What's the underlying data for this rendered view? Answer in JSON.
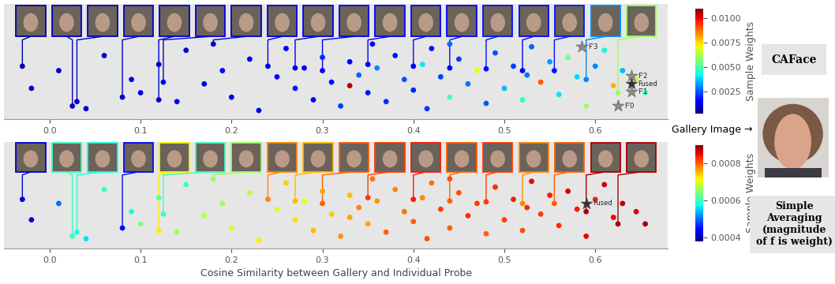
{
  "chart_data": [
    {
      "type": "scatter",
      "xlim": [
        -0.05,
        0.68
      ],
      "xticks": [
        0.0,
        0.1,
        0.2,
        0.3,
        0.4,
        0.5,
        0.6
      ],
      "ylim": [
        0,
        1.3
      ],
      "tick_labels": "x",
      "points": {
        "x": [
          -0.02,
          0.01,
          0.04,
          0.06,
          0.09,
          0.1,
          0.12,
          0.14,
          0.15,
          0.17,
          0.19,
          0.2,
          0.22,
          0.23,
          0.25,
          0.26,
          0.27,
          0.28,
          0.29,
          0.3,
          0.31,
          0.32,
          0.33,
          0.34,
          0.35,
          0.355,
          0.36,
          0.37,
          0.38,
          0.39,
          0.4,
          0.41,
          0.415,
          0.42,
          0.43,
          0.44,
          0.45,
          0.46,
          0.47,
          0.48,
          0.49,
          0.5,
          0.51,
          0.52,
          0.525,
          0.53,
          0.54,
          0.55,
          0.56,
          0.57,
          0.58,
          0.59,
          0.6,
          0.61,
          0.62,
          0.63,
          0.645,
          0.655,
          0.33,
          0.44
        ],
        "y": [
          0.35,
          0.55,
          0.12,
          0.72,
          0.45,
          0.3,
          0.62,
          0.2,
          0.78,
          0.4,
          0.55,
          0.25,
          0.68,
          0.1,
          0.48,
          0.8,
          0.35,
          0.58,
          0.22,
          0.7,
          0.42,
          0.15,
          0.65,
          0.5,
          0.3,
          0.85,
          0.58,
          0.2,
          0.72,
          0.45,
          0.33,
          0.62,
          0.12,
          0.8,
          0.48,
          0.25,
          0.68,
          0.4,
          0.55,
          0.18,
          0.75,
          0.35,
          0.6,
          0.22,
          0.5,
          0.82,
          0.42,
          0.65,
          0.28,
          0.7,
          0.48,
          0.15,
          0.6,
          0.78,
          0.38,
          0.55,
          0.45,
          0.3,
          0.38,
          0.85
        ],
        "weights": [
          0.0008,
          0.0009,
          0.001,
          0.0008,
          0.0012,
          0.0011,
          0.001,
          0.0013,
          0.0009,
          0.0012,
          0.0014,
          0.0011,
          0.0015,
          0.0012,
          0.0016,
          0.0013,
          0.0018,
          0.0015,
          0.0014,
          0.002,
          0.0017,
          0.0022,
          0.0015,
          0.0026,
          0.0018,
          0.0016,
          0.003,
          0.002,
          0.0017,
          0.0024,
          0.0019,
          0.004,
          0.0021,
          0.0018,
          0.0023,
          0.005,
          0.0022,
          0.0028,
          0.007,
          0.0025,
          0.0024,
          0.0035,
          0.0022,
          0.0045,
          0.0028,
          0.0026,
          0.009,
          0.0032,
          0.004,
          0.0055,
          0.0038,
          0.006,
          0.003,
          0.0042,
          0.008,
          0.0035,
          0.0065,
          0.0048,
          0.0105,
          0.0027
        ]
      },
      "probe_images": {
        "x": [
          -0.03,
          0.025,
          0.03,
          0.08,
          0.12,
          0.125,
          0.18,
          0.24,
          0.27,
          0.3,
          0.35,
          0.4,
          0.44,
          0.48,
          0.52,
          0.555,
          0.59,
          0.625
        ],
        "y": [
          0.6,
          0.15,
          0.2,
          0.25,
          0.22,
          0.42,
          0.85,
          0.6,
          0.58,
          0.55,
          0.62,
          0.6,
          0.58,
          0.57,
          0.55,
          0.55,
          0.45,
          0.3
        ],
        "weights": [
          0.0006,
          0.0008,
          0.0009,
          0.001,
          0.0009,
          0.0012,
          0.001,
          0.0011,
          0.0012,
          0.0013,
          0.0014,
          0.0015,
          0.0016,
          0.0017,
          0.0016,
          0.0018,
          0.003,
          0.006
        ]
      },
      "stars": [
        {
          "text": "F'3",
          "x": 0.585,
          "y": 0.82,
          "color": "#8c8c8c"
        },
        {
          "text": "F'2",
          "x": 0.64,
          "y": 0.49,
          "color": "#8c8c8c"
        },
        {
          "text": "Fused",
          "x": 0.64,
          "y": 0.4,
          "color": "#333333"
        },
        {
          "text": "F'1",
          "x": 0.64,
          "y": 0.31,
          "color": "#8c8c8c"
        },
        {
          "text": "F'0",
          "x": 0.625,
          "y": 0.15,
          "color": "#8c8c8c"
        }
      ],
      "colorbar": {
        "label": "Sample Weights",
        "range": [
          0.0002,
          0.011
        ],
        "ticks": [
          0.0025,
          {
            "value": 0.005,
            "label": "0.0050"
          },
          0.0075,
          {
            "value": 0.01,
            "label": "0.0100"
          }
        ]
      }
    },
    {
      "type": "scatter",
      "xlim": [
        -0.05,
        0.68
      ],
      "xticks": [
        0.0,
        0.1,
        0.2,
        0.3,
        0.4,
        0.5,
        0.6
      ],
      "ylim": [
        0,
        1.3
      ],
      "tick_labels": "x",
      "xlabel": "Cosine Similarity between Gallery and Individual Probe",
      "points": {
        "x": [
          -0.02,
          0.01,
          0.04,
          0.06,
          0.09,
          0.1,
          0.12,
          0.14,
          0.15,
          0.17,
          0.19,
          0.2,
          0.22,
          0.23,
          0.25,
          0.26,
          0.27,
          0.28,
          0.29,
          0.3,
          0.31,
          0.32,
          0.33,
          0.34,
          0.35,
          0.355,
          0.36,
          0.37,
          0.38,
          0.39,
          0.4,
          0.41,
          0.415,
          0.42,
          0.43,
          0.44,
          0.45,
          0.46,
          0.47,
          0.48,
          0.49,
          0.5,
          0.51,
          0.52,
          0.525,
          0.53,
          0.54,
          0.55,
          0.56,
          0.57,
          0.58,
          0.59,
          0.6,
          0.61,
          0.62,
          0.63,
          0.645,
          0.655,
          0.33,
          0.44
        ],
        "y": [
          0.35,
          0.55,
          0.12,
          0.72,
          0.45,
          0.3,
          0.62,
          0.2,
          0.78,
          0.4,
          0.55,
          0.25,
          0.68,
          0.1,
          0.48,
          0.8,
          0.35,
          0.58,
          0.22,
          0.7,
          0.42,
          0.15,
          0.65,
          0.5,
          0.3,
          0.85,
          0.58,
          0.2,
          0.72,
          0.45,
          0.33,
          0.62,
          0.12,
          0.8,
          0.48,
          0.25,
          0.68,
          0.4,
          0.55,
          0.18,
          0.75,
          0.35,
          0.6,
          0.22,
          0.5,
          0.82,
          0.42,
          0.65,
          0.28,
          0.7,
          0.48,
          0.15,
          0.6,
          0.78,
          0.38,
          0.55,
          0.45,
          0.3,
          0.38,
          0.85
        ],
        "weights": [
          0.00042,
          0.0005,
          0.00056,
          0.0006,
          0.00058,
          0.00064,
          0.00062,
          0.00066,
          0.0006,
          0.00068,
          0.00066,
          0.0007,
          0.00068,
          0.00072,
          0.0007,
          0.00074,
          0.00073,
          0.00071,
          0.00075,
          0.00076,
          0.00074,
          0.00077,
          0.00075,
          0.00078,
          0.00076,
          0.00079,
          0.00077,
          0.0008,
          0.00078,
          0.00079,
          0.0008,
          0.00078,
          0.00081,
          0.00079,
          0.00082,
          0.0008,
          0.00081,
          0.00083,
          0.00082,
          0.0008,
          0.00083,
          0.00082,
          0.00084,
          0.00081,
          0.00083,
          0.00085,
          0.00082,
          0.00084,
          0.00083,
          0.00086,
          0.00084,
          0.00085,
          0.00083,
          0.00086,
          0.00085,
          0.00087,
          0.00086,
          0.00088,
          0.00076,
          0.00081
        ]
      },
      "probe_images": {
        "x": [
          -0.03,
          0.025,
          0.03,
          0.08,
          0.12,
          0.125,
          0.18,
          0.24,
          0.27,
          0.3,
          0.35,
          0.4,
          0.44,
          0.48,
          0.52,
          0.555,
          0.59,
          0.625
        ],
        "y": [
          0.6,
          0.15,
          0.2,
          0.25,
          0.22,
          0.42,
          0.85,
          0.6,
          0.58,
          0.55,
          0.62,
          0.6,
          0.58,
          0.57,
          0.55,
          0.55,
          0.45,
          0.3
        ],
        "weights": [
          0.00042,
          0.0006,
          0.00058,
          0.00045,
          0.00072,
          0.0006,
          0.00066,
          0.00078,
          0.00075,
          0.0008,
          0.00082,
          0.00084,
          0.0008,
          0.00082,
          0.00078,
          0.0008,
          0.00088,
          0.00088
        ]
      },
      "stars": [
        {
          "text": "Fused",
          "x": 0.59,
          "y": 0.55,
          "color": "#333333"
        }
      ],
      "colorbar": {
        "label": "Sample Weights",
        "range": [
          0.00038,
          0.0009
        ],
        "ticks": [
          0.0004,
          0.0006,
          0.0008
        ]
      }
    }
  ],
  "side_panel": {
    "top_label": "CAFace",
    "gallery_label": "Gallery Image →",
    "bottom_label": [
      "Simple",
      "Averaging",
      "(magnitude",
      "of f is weight)"
    ]
  }
}
